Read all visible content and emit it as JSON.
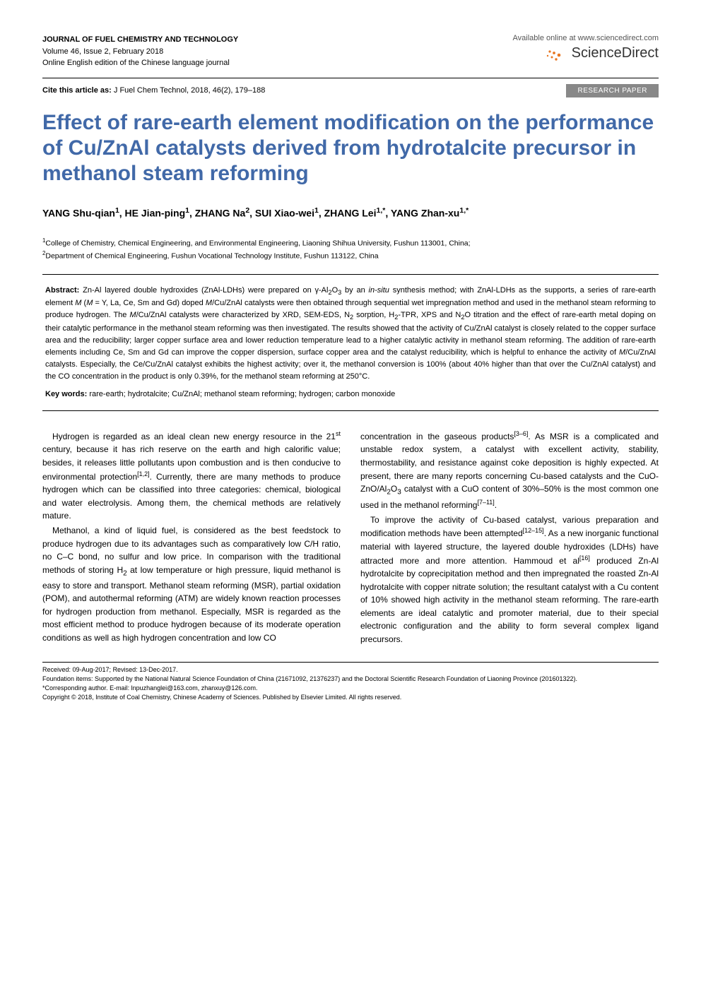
{
  "header": {
    "journal_name": "JOURNAL OF FUEL CHEMISTRY AND TECHNOLOGY",
    "issue_info": "Volume 46, Issue 2, February 2018",
    "edition_info": "Online English edition of the Chinese language journal",
    "available_text": "Available online at www.sciencedirect.com",
    "brand": "ScienceDirect"
  },
  "cite": {
    "label": "Cite this article as:",
    "text": " J Fuel Chem Technol, 2018, 46(2), 179–188",
    "badge": "RESEARCH PAPER"
  },
  "title": "Effect of rare-earth element modification on the performance of Cu/ZnAl catalysts derived from hydrotalcite precursor in methanol steam reforming",
  "authors_html": "YANG Shu-qian<sup>1</sup>, HE Jian-ping<sup>1</sup>, ZHANG Na<sup>2</sup>, SUI Xiao-wei<sup>1</sup>, ZHANG Lei<sup>1,*</sup>, YANG Zhan-xu<sup>1,*</sup>",
  "affiliations": [
    "<sup>1</sup>College of Chemistry, Chemical Engineering, and Environmental Engineering, Liaoning Shihua University, Fushun 113001, China;",
    "<sup>2</sup>Department of Chemical Engineering, Fushun Vocational Technology Institute, Fushun 113122, China"
  ],
  "abstract": {
    "label": "Abstract:",
    "text": "Zn-Al layered double hydroxides (ZnAl-LDHs) were prepared on γ-Al<sub>2</sub>O<sub>3</sub> by an <i>in-situ</i> synthesis method; with ZnAl-LDHs as the supports, a series of rare-earth element <i>M</i> (<i>M</i> = Y, La, Ce, Sm and Gd) doped <i>M</i>/Cu/ZnAl catalysts were then obtained through sequential wet impregnation method and used in the methanol steam reforming to produce hydrogen. The <i>M</i>/Cu/ZnAl catalysts were characterized by XRD, SEM-EDS, N<sub>2</sub> sorption, H<sub>2</sub>-TPR, XPS and N<sub>2</sub>O titration and the effect of rare-earth metal doping on their catalytic performance in the methanol steam reforming was then investigated. The results showed that the activity of Cu/ZnAl catalyst is closely related to the copper surface area and the reducibility; larger copper surface area and lower reduction temperature lead to a higher catalytic activity in methanol steam reforming. The addition of rare-earth elements including Ce, Sm and Gd can improve the copper dispersion, surface copper area and the catalyst reducibility, which is helpful to enhance the activity of <i>M</i>/Cu/ZnAl catalysts. Especially, the Ce/Cu/ZnAl catalyst exhibits the highest activity; over it, the methanol conversion is 100% (about 40% higher than that over the Cu/ZnAl catalyst) and the CO concentration in the product is only 0.39%, for the methanol steam reforming at 250°C.",
    "keywords_label": "Key words:",
    "keywords": "rare-earth; hydrotalcite; Cu/ZnAl; methanol steam reforming; hydrogen; carbon monoxide"
  },
  "body": {
    "left_paras": [
      "Hydrogen is regarded as an ideal clean new energy resource in the 21<sup>st</sup> century, because it has rich reserve on the earth and high calorific value; besides, it releases little pollutants upon combustion and is then conducive to environmental protection<sup>[1,2]</sup>. Currently, there are many methods to produce hydrogen which can be classified into three categories: chemical, biological and water electrolysis. Among them, the chemical methods are relatively mature.",
      "Methanol, a kind of liquid fuel, is considered as the best feedstock to produce hydrogen due to its advantages such as comparatively low C/H ratio, no C–C bond, no sulfur and low price. In comparison with the traditional methods of storing H<sub>2</sub> at low temperature or high pressure, liquid methanol is easy to store and transport. Methanol steam reforming (MSR), partial oxidation (POM), and autothermal reforming (ATM) are widely known reaction processes for hydrogen production from methanol. Especially, MSR is regarded as the most efficient method to produce hydrogen because of its moderate operation conditions as well as high hydrogen concentration and low CO"
    ],
    "right_paras": [
      "concentration in the gaseous products<sup>[3–6]</sup>. As MSR is a complicated and unstable redox system, a catalyst with excellent activity, stability, thermostability, and resistance against coke deposition is highly expected. At present, there are many reports concerning Cu-based catalysts and the CuO-ZnO/Al<sub>2</sub>O<sub>3</sub> catalyst with a CuO content of 30%–50% is the most common one used in the methanol reforming<sup>[7–11]</sup>.",
      "To improve the activity of Cu-based catalyst, various preparation and modification methods have been attempted<sup>[12–15]</sup>. As a new inorganic functional material with layered structure, the layered double hydroxides (LDHs) have attracted more and more attention. Hammoud et al<sup>[16]</sup> produced Zn-Al hydrotalcite by coprecipitation method and then impregnated the roasted Zn-Al hydrotalcite with copper nitrate solution; the resultant catalyst with a Cu content of 10% showed high activity in the methanol steam reforming. The rare-earth elements are ideal catalytic and promoter material, due to their special electronic configuration and the ability to form several complex ligand precursors."
    ]
  },
  "footer": {
    "received": "Received: 09-Aug-2017; Revised: 13-Dec-2017.",
    "foundation": "Foundation items: Supported by the National Natural Science Foundation of China (21671092, 21376237) and the Doctoral Scientific Research Foundation of Liaoning Province (201601322).",
    "corresponding": "*Corresponding author. E-mail: lnpuzhanglei@163.com, zhanxuy@126.com.",
    "copyright": "Copyright © 2018, Institute of Coal Chemistry, Chinese Academy of Sciences. Published by Elsevier Limited. All rights reserved."
  },
  "colors": {
    "title_color": "#4169a8",
    "badge_bg": "#888888",
    "badge_fg": "#ffffff",
    "sd_icon": "#e87722"
  }
}
